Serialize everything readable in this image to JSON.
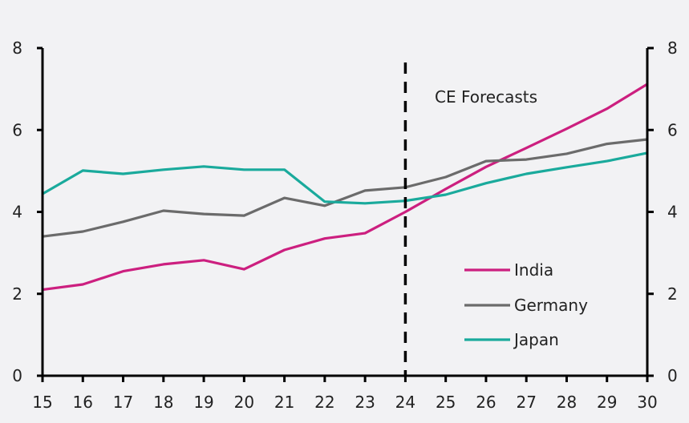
{
  "chart_data": {
    "type": "line",
    "title": "",
    "xlabel": "",
    "ylabel": "",
    "x": [
      15,
      16,
      17,
      18,
      19,
      20,
      21,
      22,
      23,
      24,
      25,
      26,
      27,
      28,
      29,
      30
    ],
    "xlim": [
      15,
      30
    ],
    "ylim": [
      0,
      8
    ],
    "yticks": [
      0,
      2,
      4,
      6,
      8
    ],
    "grid": false,
    "secondary_yaxis": true,
    "forecast_start_x": 24,
    "annotation": "CE Forecasts",
    "legend_position": "bottom-right",
    "series": [
      {
        "name": "India",
        "color": "#cc1f7f",
        "values": [
          2.1,
          2.23,
          2.55,
          2.72,
          2.82,
          2.6,
          3.07,
          3.35,
          3.48,
          4.0,
          4.56,
          5.1,
          5.56,
          6.03,
          6.52,
          7.12
        ]
      },
      {
        "name": "Germany",
        "color": "#6b6b6b",
        "values": [
          3.4,
          3.52,
          3.76,
          4.03,
          3.95,
          3.91,
          4.34,
          4.15,
          4.52,
          4.6,
          4.85,
          5.24,
          5.28,
          5.42,
          5.66,
          5.77
        ]
      },
      {
        "name": "Japan",
        "color": "#1aaa9c",
        "values": [
          4.44,
          5.01,
          4.93,
          5.03,
          5.11,
          5.03,
          5.03,
          4.25,
          4.21,
          4.27,
          4.42,
          4.7,
          4.93,
          5.09,
          5.24,
          5.44
        ]
      }
    ]
  }
}
